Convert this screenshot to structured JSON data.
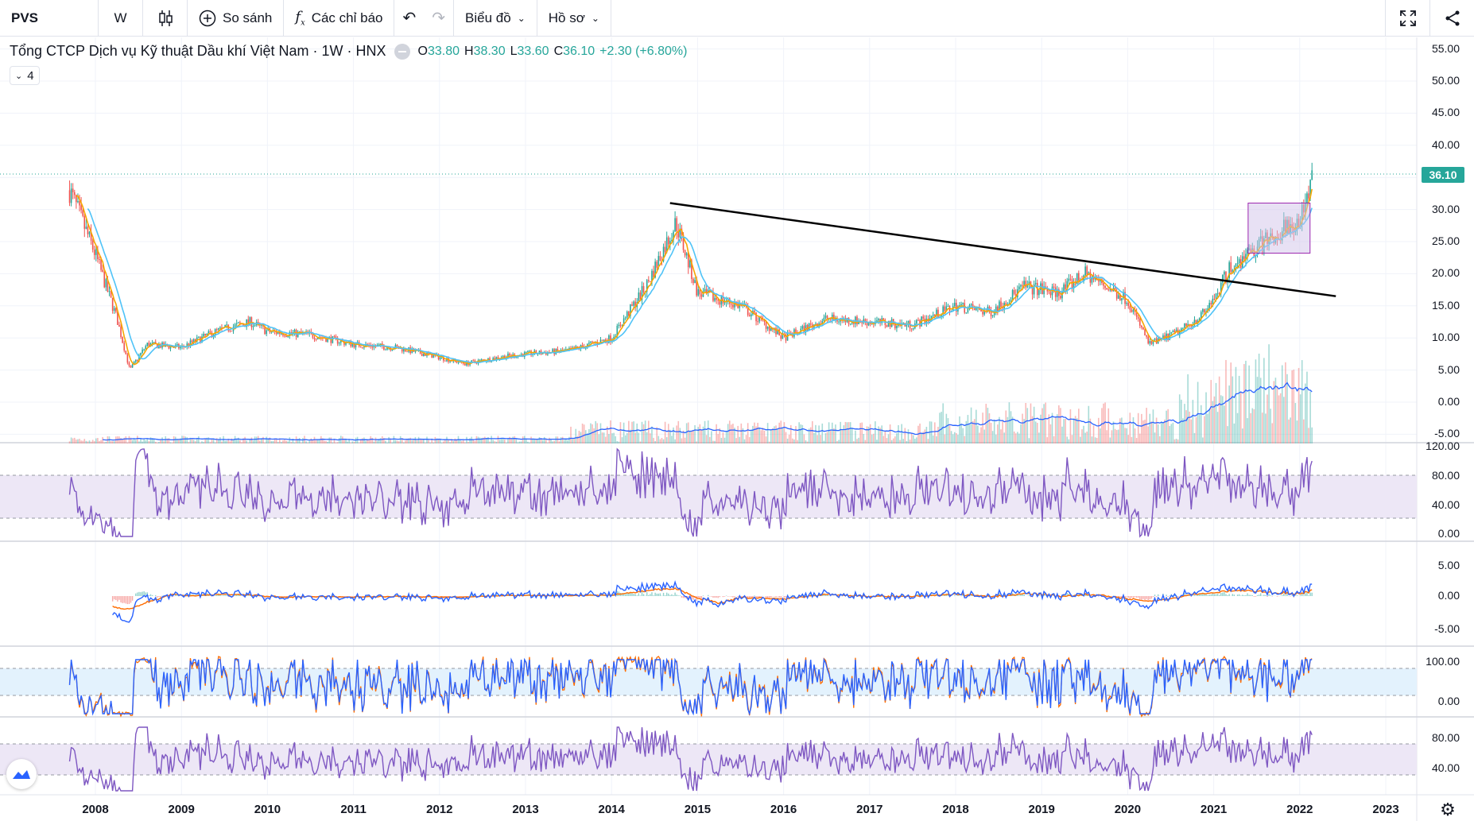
{
  "toolbar": {
    "symbol": "PVS",
    "interval": "W",
    "compare_label": "So sánh",
    "indicators_label": "Các chỉ báo",
    "chart_type_label": "Biểu đồ",
    "profile_label": "Hồ sơ"
  },
  "legend": {
    "title": "Tổng CTCP Dịch vụ Kỹ thuật Dầu khí Việt Nam · 1W · HNX",
    "open_key": "O",
    "open": "33.80",
    "high_key": "H",
    "high": "38.30",
    "low_key": "L",
    "low": "33.60",
    "close_key": "C",
    "close": "36.10",
    "change": "+2.30 (+6.80%)",
    "collapsed_count": "4"
  },
  "price_axis": [
    "55.00",
    "50.00",
    "45.00",
    "40.00",
    "35.00",
    "30.00",
    "25.00",
    "20.00",
    "15.00",
    "10.00",
    "5.00",
    "0.00",
    "-5.00"
  ],
  "last_price_tag": "36.10",
  "rsi_axis": [
    "120.00",
    "80.00",
    "40.00",
    "0.00"
  ],
  "macd_axis": [
    "5.00",
    "0.00",
    "-5.00"
  ],
  "stoch_axis": [
    "100.00",
    "0.00"
  ],
  "osc4_axis": [
    "80.00",
    "40.00"
  ],
  "time_axis": [
    "2008",
    "2009",
    "2010",
    "2011",
    "2012",
    "2013",
    "2014",
    "2015",
    "2016",
    "2017",
    "2018",
    "2019",
    "2020",
    "2021",
    "2022",
    "2023"
  ],
  "colors": {
    "up": "#26a69a",
    "down": "#ef5350",
    "ma_fast": "#f7a600",
    "ma_slow": "#4fc3f7",
    "vol_ma": "#2962ff",
    "rsi": "#7e57c2",
    "band": "#ede7f6",
    "stoch_band": "#e3f2fd",
    "macd": "#2962ff",
    "signal": "#ff6d00",
    "trendline": "#000000",
    "rect_fill": "#d1c4e9",
    "rect_border": "#9c27b0"
  },
  "chart_data": {
    "type": "line",
    "title": "Tổng CTCP Dịch vụ Kỹ thuật Dầu khí Việt Nam · 1W · HNX",
    "ylim": [
      -5,
      57
    ],
    "x": [
      2007.7,
      2008.0,
      2008.25,
      2008.4,
      2008.6,
      2009.0,
      2009.4,
      2009.8,
      2010.0,
      2010.5,
      2011.0,
      2011.5,
      2012.0,
      2012.3,
      2012.7,
      2013.0,
      2013.5,
      2014.0,
      2014.4,
      2014.75,
      2015.0,
      2015.5,
      2016.0,
      2016.5,
      2017.0,
      2017.5,
      2018.0,
      2018.4,
      2018.8,
      2019.2,
      2019.5,
      2020.0,
      2020.25,
      2020.6,
      2020.9,
      2021.2,
      2021.5,
      2021.8,
      2022.0,
      2022.15
    ],
    "series": [
      {
        "values": [
          33,
          23,
          13,
          5,
          9,
          8.5,
          11,
          12.5,
          11,
          10.5,
          9,
          8.5,
          7,
          6,
          7,
          7.5,
          8,
          10,
          18,
          28,
          17,
          15,
          10,
          13,
          12.5,
          12,
          15,
          14,
          18,
          17,
          20,
          16,
          9,
          11,
          14,
          21,
          24,
          27,
          28,
          36.1
        ]
      }
    ]
  }
}
